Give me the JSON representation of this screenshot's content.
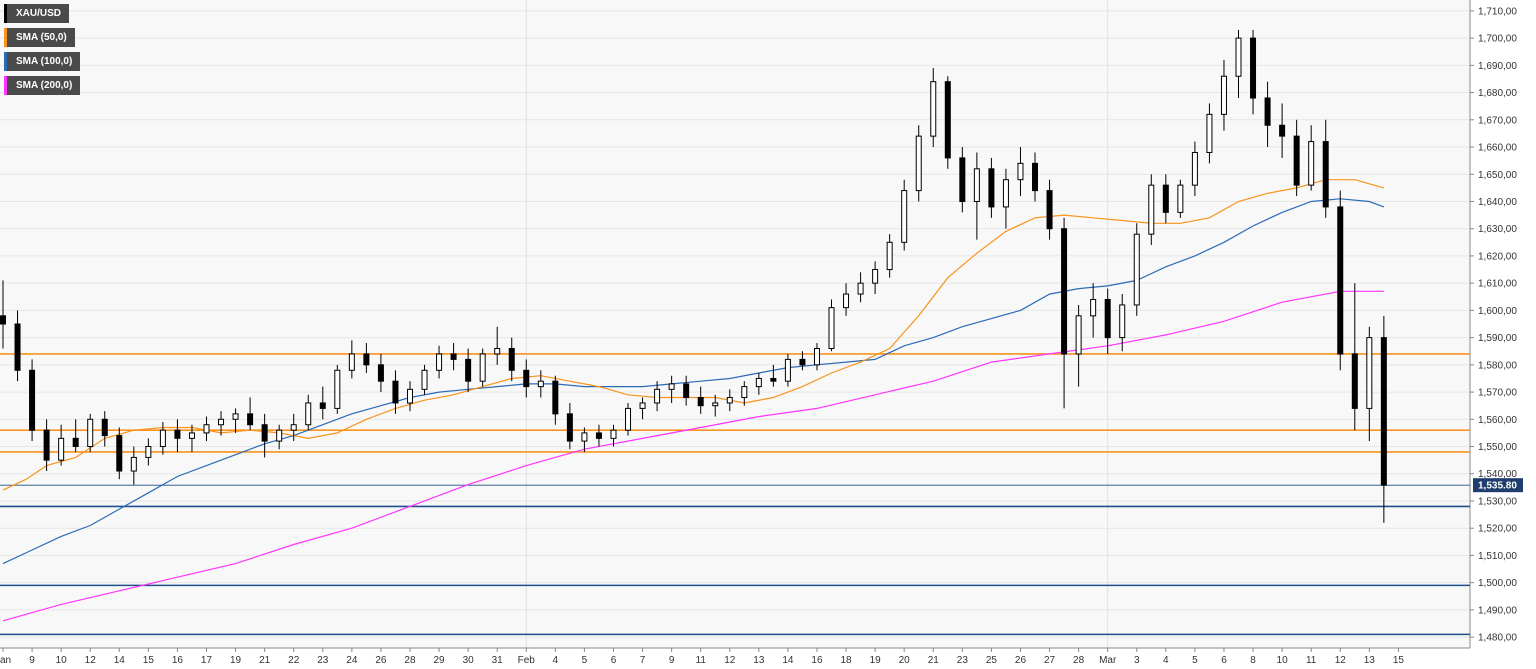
{
  "chart_data": {
    "type": "candlestick",
    "symbol": "XAU/USD",
    "legend": [
      {
        "label": "XAU/USD",
        "color": "#000000"
      },
      {
        "label": "SMA (50,0)",
        "color": "#f7941d"
      },
      {
        "label": "SMA (100,0)",
        "color": "#2a6bb6"
      },
      {
        "label": "SMA (200,0)",
        "color": "#ff33ff"
      }
    ],
    "ylim": [
      1476,
      1714
    ],
    "y_ticks": [
      1710,
      1700,
      1690,
      1680,
      1670,
      1660,
      1650,
      1640,
      1630,
      1620,
      1610,
      1600,
      1590,
      1580,
      1570,
      1560,
      1550,
      1540,
      1530,
      1520,
      1510,
      1500,
      1490,
      1480
    ],
    "y_tick_labels": [
      "1,710,00",
      "1,700,00",
      "1,690,00",
      "1,680,00",
      "1,670,00",
      "1,660,00",
      "1,650,00",
      "1,640,00",
      "1,630,00",
      "1,620,00",
      "1,610,00",
      "1,600,00",
      "1,590,00",
      "1,580,00",
      "1,570,00",
      "1,560,00",
      "1,550,00",
      "1,540,00",
      "1,530,00",
      "1,520,00",
      "1,510,00",
      "1,500,00",
      "1,490,00",
      "1,480,00"
    ],
    "x_ticks": [
      "Jan",
      "9",
      "10",
      "12",
      "14",
      "15",
      "16",
      "17",
      "19",
      "21",
      "22",
      "23",
      "24",
      "26",
      "28",
      "29",
      "30",
      "31",
      "Feb",
      "4",
      "5",
      "6",
      "7",
      "9",
      "11",
      "12",
      "13",
      "14",
      "16",
      "18",
      "19",
      "20",
      "21",
      "23",
      "25",
      "26",
      "27",
      "28",
      "Mar",
      "3",
      "4",
      "5",
      "6",
      "8",
      "10",
      "11",
      "12",
      "13",
      "15"
    ],
    "current_price": 1535.8,
    "current_price_label": "1,535.80",
    "resistance_levels": [
      1584,
      1556,
      1548
    ],
    "support_levels": [
      1528,
      1499,
      1481
    ],
    "grid": true,
    "candles": [
      {
        "t": 0,
        "o": 1598,
        "h": 1611,
        "l": 1586,
        "c": 1595
      },
      {
        "t": 0.5,
        "o": 1595,
        "h": 1600,
        "l": 1574,
        "c": 1578
      },
      {
        "t": 1,
        "o": 1578,
        "h": 1582,
        "l": 1552,
        "c": 1556
      },
      {
        "t": 1.5,
        "o": 1556,
        "h": 1560,
        "l": 1541,
        "c": 1545
      },
      {
        "t": 2,
        "o": 1545,
        "h": 1558,
        "l": 1543,
        "c": 1553
      },
      {
        "t": 2.5,
        "o": 1553,
        "h": 1560,
        "l": 1548,
        "c": 1550
      },
      {
        "t": 3,
        "o": 1550,
        "h": 1562,
        "l": 1548,
        "c": 1560
      },
      {
        "t": 3.5,
        "o": 1560,
        "h": 1563,
        "l": 1550,
        "c": 1554
      },
      {
        "t": 4,
        "o": 1554,
        "h": 1557,
        "l": 1538,
        "c": 1541
      },
      {
        "t": 4.5,
        "o": 1541,
        "h": 1550,
        "l": 1536,
        "c": 1546
      },
      {
        "t": 5,
        "o": 1546,
        "h": 1553,
        "l": 1543,
        "c": 1550
      },
      {
        "t": 5.5,
        "o": 1550,
        "h": 1559,
        "l": 1547,
        "c": 1556
      },
      {
        "t": 6,
        "o": 1556,
        "h": 1560,
        "l": 1548,
        "c": 1553
      },
      {
        "t": 6.5,
        "o": 1553,
        "h": 1558,
        "l": 1548,
        "c": 1555
      },
      {
        "t": 7,
        "o": 1555,
        "h": 1561,
        "l": 1552,
        "c": 1558
      },
      {
        "t": 7.5,
        "o": 1558,
        "h": 1563,
        "l": 1554,
        "c": 1560
      },
      {
        "t": 8,
        "o": 1560,
        "h": 1564,
        "l": 1555,
        "c": 1562
      },
      {
        "t": 8.5,
        "o": 1562,
        "h": 1568,
        "l": 1556,
        "c": 1558
      },
      {
        "t": 9,
        "o": 1558,
        "h": 1562,
        "l": 1546,
        "c": 1552
      },
      {
        "t": 9.5,
        "o": 1552,
        "h": 1558,
        "l": 1549,
        "c": 1556
      },
      {
        "t": 10,
        "o": 1556,
        "h": 1562,
        "l": 1552,
        "c": 1558
      },
      {
        "t": 10.5,
        "o": 1558,
        "h": 1569,
        "l": 1556,
        "c": 1566
      },
      {
        "t": 11,
        "o": 1566,
        "h": 1572,
        "l": 1560,
        "c": 1564
      },
      {
        "t": 11.5,
        "o": 1564,
        "h": 1580,
        "l": 1562,
        "c": 1578
      },
      {
        "t": 12,
        "o": 1578,
        "h": 1589,
        "l": 1575,
        "c": 1584
      },
      {
        "t": 12.5,
        "o": 1584,
        "h": 1588,
        "l": 1577,
        "c": 1580
      },
      {
        "t": 13,
        "o": 1580,
        "h": 1584,
        "l": 1570,
        "c": 1574
      },
      {
        "t": 13.5,
        "o": 1574,
        "h": 1578,
        "l": 1562,
        "c": 1566
      },
      {
        "t": 14,
        "o": 1566,
        "h": 1574,
        "l": 1563,
        "c": 1571
      },
      {
        "t": 14.5,
        "o": 1571,
        "h": 1580,
        "l": 1569,
        "c": 1578
      },
      {
        "t": 15,
        "o": 1578,
        "h": 1587,
        "l": 1575,
        "c": 1584
      },
      {
        "t": 15.5,
        "o": 1584,
        "h": 1588,
        "l": 1578,
        "c": 1582
      },
      {
        "t": 16,
        "o": 1582,
        "h": 1586,
        "l": 1570,
        "c": 1574
      },
      {
        "t": 16.5,
        "o": 1574,
        "h": 1586,
        "l": 1572,
        "c": 1584
      },
      {
        "t": 17,
        "o": 1584,
        "h": 1594,
        "l": 1580,
        "c": 1586
      },
      {
        "t": 17.5,
        "o": 1586,
        "h": 1590,
        "l": 1574,
        "c": 1578
      },
      {
        "t": 18,
        "o": 1578,
        "h": 1582,
        "l": 1568,
        "c": 1572
      },
      {
        "t": 18.5,
        "o": 1572,
        "h": 1578,
        "l": 1568,
        "c": 1574
      },
      {
        "t": 19,
        "o": 1574,
        "h": 1576,
        "l": 1558,
        "c": 1562
      },
      {
        "t": 19.5,
        "o": 1562,
        "h": 1566,
        "l": 1549,
        "c": 1552
      },
      {
        "t": 20,
        "o": 1552,
        "h": 1557,
        "l": 1548,
        "c": 1555
      },
      {
        "t": 20.5,
        "o": 1555,
        "h": 1558,
        "l": 1550,
        "c": 1553
      },
      {
        "t": 21,
        "o": 1553,
        "h": 1558,
        "l": 1550,
        "c": 1556
      },
      {
        "t": 21.5,
        "o": 1556,
        "h": 1566,
        "l": 1554,
        "c": 1564
      },
      {
        "t": 22,
        "o": 1564,
        "h": 1568,
        "l": 1560,
        "c": 1566
      },
      {
        "t": 22.5,
        "o": 1566,
        "h": 1574,
        "l": 1563,
        "c": 1571
      },
      {
        "t": 23,
        "o": 1571,
        "h": 1576,
        "l": 1566,
        "c": 1573
      },
      {
        "t": 23.5,
        "o": 1573,
        "h": 1576,
        "l": 1565,
        "c": 1568
      },
      {
        "t": 24,
        "o": 1568,
        "h": 1572,
        "l": 1562,
        "c": 1565
      },
      {
        "t": 24.5,
        "o": 1565,
        "h": 1569,
        "l": 1561,
        "c": 1566
      },
      {
        "t": 25,
        "o": 1566,
        "h": 1571,
        "l": 1563,
        "c": 1568
      },
      {
        "t": 25.5,
        "o": 1568,
        "h": 1574,
        "l": 1565,
        "c": 1572
      },
      {
        "t": 26,
        "o": 1572,
        "h": 1577,
        "l": 1569,
        "c": 1575
      },
      {
        "t": 26.5,
        "o": 1575,
        "h": 1580,
        "l": 1572,
        "c": 1574
      },
      {
        "t": 27,
        "o": 1574,
        "h": 1584,
        "l": 1572,
        "c": 1582
      },
      {
        "t": 27.5,
        "o": 1582,
        "h": 1585,
        "l": 1578,
        "c": 1580
      },
      {
        "t": 28,
        "o": 1580,
        "h": 1588,
        "l": 1578,
        "c": 1586
      },
      {
        "t": 28.5,
        "o": 1586,
        "h": 1604,
        "l": 1585,
        "c": 1601
      },
      {
        "t": 29,
        "o": 1601,
        "h": 1610,
        "l": 1598,
        "c": 1606
      },
      {
        "t": 29.5,
        "o": 1606,
        "h": 1614,
        "l": 1603,
        "c": 1610
      },
      {
        "t": 30,
        "o": 1610,
        "h": 1618,
        "l": 1606,
        "c": 1615
      },
      {
        "t": 30.5,
        "o": 1615,
        "h": 1628,
        "l": 1612,
        "c": 1625
      },
      {
        "t": 31,
        "o": 1625,
        "h": 1648,
        "l": 1622,
        "c": 1644
      },
      {
        "t": 31.5,
        "o": 1644,
        "h": 1668,
        "l": 1640,
        "c": 1664
      },
      {
        "t": 32,
        "o": 1664,
        "h": 1689,
        "l": 1660,
        "c": 1684
      },
      {
        "t": 32.5,
        "o": 1684,
        "h": 1686,
        "l": 1652,
        "c": 1656
      },
      {
        "t": 33,
        "o": 1656,
        "h": 1660,
        "l": 1636,
        "c": 1640
      },
      {
        "t": 33.5,
        "o": 1640,
        "h": 1658,
        "l": 1626,
        "c": 1652
      },
      {
        "t": 34,
        "o": 1652,
        "h": 1656,
        "l": 1634,
        "c": 1638
      },
      {
        "t": 34.5,
        "o": 1638,
        "h": 1652,
        "l": 1630,
        "c": 1648
      },
      {
        "t": 35,
        "o": 1648,
        "h": 1660,
        "l": 1642,
        "c": 1654
      },
      {
        "t": 35.5,
        "o": 1654,
        "h": 1658,
        "l": 1640,
        "c": 1644
      },
      {
        "t": 36,
        "o": 1644,
        "h": 1648,
        "l": 1626,
        "c": 1630
      },
      {
        "t": 36.5,
        "o": 1630,
        "h": 1634,
        "l": 1564,
        "c": 1584
      },
      {
        "t": 37,
        "o": 1584,
        "h": 1602,
        "l": 1572,
        "c": 1598
      },
      {
        "t": 37.5,
        "o": 1598,
        "h": 1610,
        "l": 1590,
        "c": 1604
      },
      {
        "t": 38,
        "o": 1604,
        "h": 1608,
        "l": 1584,
        "c": 1590
      },
      {
        "t": 38.5,
        "o": 1590,
        "h": 1606,
        "l": 1585,
        "c": 1602
      },
      {
        "t": 39,
        "o": 1602,
        "h": 1632,
        "l": 1598,
        "c": 1628
      },
      {
        "t": 39.5,
        "o": 1628,
        "h": 1650,
        "l": 1624,
        "c": 1646
      },
      {
        "t": 40,
        "o": 1646,
        "h": 1650,
        "l": 1632,
        "c": 1636
      },
      {
        "t": 40.5,
        "o": 1636,
        "h": 1648,
        "l": 1634,
        "c": 1646
      },
      {
        "t": 41,
        "o": 1646,
        "h": 1662,
        "l": 1642,
        "c": 1658
      },
      {
        "t": 41.5,
        "o": 1658,
        "h": 1676,
        "l": 1654,
        "c": 1672
      },
      {
        "t": 42,
        "o": 1672,
        "h": 1692,
        "l": 1666,
        "c": 1686
      },
      {
        "t": 42.5,
        "o": 1686,
        "h": 1703,
        "l": 1678,
        "c": 1700
      },
      {
        "t": 43,
        "o": 1700,
        "h": 1703,
        "l": 1672,
        "c": 1678
      },
      {
        "t": 43.5,
        "o": 1678,
        "h": 1684,
        "l": 1660,
        "c": 1668
      },
      {
        "t": 44,
        "o": 1668,
        "h": 1676,
        "l": 1656,
        "c": 1664
      },
      {
        "t": 44.5,
        "o": 1664,
        "h": 1670,
        "l": 1642,
        "c": 1646
      },
      {
        "t": 45,
        "o": 1646,
        "h": 1668,
        "l": 1644,
        "c": 1662
      },
      {
        "t": 45.5,
        "o": 1662,
        "h": 1670,
        "l": 1634,
        "c": 1638
      },
      {
        "t": 46,
        "o": 1638,
        "h": 1644,
        "l": 1578,
        "c": 1584
      },
      {
        "t": 46.5,
        "o": 1584,
        "h": 1610,
        "l": 1556,
        "c": 1564
      },
      {
        "t": 47,
        "o": 1564,
        "h": 1594,
        "l": 1552,
        "c": 1590
      },
      {
        "t": 47.5,
        "o": 1590,
        "h": 1598,
        "l": 1522,
        "c": 1535.8
      }
    ],
    "sma50": [
      [
        0,
        1534
      ],
      [
        0.8,
        1538
      ],
      [
        1.5,
        1543
      ],
      [
        2.5,
        1546
      ],
      [
        3.5,
        1553
      ],
      [
        4.5,
        1556
      ],
      [
        5.5,
        1557
      ],
      [
        6.5,
        1557
      ],
      [
        7.5,
        1555
      ],
      [
        8.5,
        1556
      ],
      [
        9.5,
        1555
      ],
      [
        10.5,
        1553
      ],
      [
        11.5,
        1555
      ],
      [
        12.5,
        1560
      ],
      [
        13.5,
        1564
      ],
      [
        14.5,
        1567
      ],
      [
        15.5,
        1569
      ],
      [
        16.5,
        1572
      ],
      [
        17.5,
        1575
      ],
      [
        18.5,
        1576
      ],
      [
        19.5,
        1574
      ],
      [
        20.5,
        1572
      ],
      [
        21.5,
        1569
      ],
      [
        22.5,
        1568
      ],
      [
        23.5,
        1568
      ],
      [
        24.5,
        1568
      ],
      [
        25.5,
        1566
      ],
      [
        26.5,
        1568
      ],
      [
        27.5,
        1572
      ],
      [
        28.5,
        1577
      ],
      [
        29.5,
        1581
      ],
      [
        30.5,
        1586
      ],
      [
        31.5,
        1598
      ],
      [
        32.5,
        1612
      ],
      [
        33.5,
        1621
      ],
      [
        34.5,
        1629
      ],
      [
        35.5,
        1634
      ],
      [
        36.5,
        1635
      ],
      [
        37.5,
        1634
      ],
      [
        38.5,
        1633
      ],
      [
        39.5,
        1632
      ],
      [
        40.5,
        1632
      ],
      [
        41.5,
        1634
      ],
      [
        42.5,
        1640
      ],
      [
        43.5,
        1643
      ],
      [
        44.5,
        1645
      ],
      [
        45.5,
        1648
      ],
      [
        46.5,
        1648
      ],
      [
        47.5,
        1645
      ]
    ],
    "sma100": [
      [
        0,
        1507
      ],
      [
        1,
        1512
      ],
      [
        2,
        1517
      ],
      [
        3,
        1521
      ],
      [
        4,
        1527
      ],
      [
        5,
        1533
      ],
      [
        6,
        1539
      ],
      [
        7,
        1543
      ],
      [
        8,
        1547
      ],
      [
        9,
        1551
      ],
      [
        10,
        1554
      ],
      [
        11,
        1558
      ],
      [
        12,
        1562
      ],
      [
        13,
        1565
      ],
      [
        14,
        1568
      ],
      [
        15,
        1570
      ],
      [
        16,
        1571
      ],
      [
        17,
        1572
      ],
      [
        18,
        1573
      ],
      [
        19,
        1573
      ],
      [
        20,
        1572
      ],
      [
        21,
        1572
      ],
      [
        22,
        1572
      ],
      [
        23,
        1573
      ],
      [
        24,
        1574
      ],
      [
        25,
        1575
      ],
      [
        26,
        1577
      ],
      [
        27,
        1579
      ],
      [
        28,
        1580
      ],
      [
        29,
        1581
      ],
      [
        30,
        1582
      ],
      [
        31,
        1587
      ],
      [
        32,
        1590
      ],
      [
        33,
        1594
      ],
      [
        34,
        1597
      ],
      [
        35,
        1600
      ],
      [
        36,
        1606
      ],
      [
        37,
        1608
      ],
      [
        38,
        1609
      ],
      [
        39,
        1611
      ],
      [
        40,
        1616
      ],
      [
        41,
        1620
      ],
      [
        42,
        1625
      ],
      [
        43,
        1631
      ],
      [
        44,
        1636
      ],
      [
        45,
        1640
      ],
      [
        46,
        1641
      ],
      [
        47,
        1640
      ],
      [
        47.5,
        1638
      ]
    ],
    "sma200": [
      [
        0,
        1486
      ],
      [
        2,
        1492
      ],
      [
        4,
        1497
      ],
      [
        6,
        1502
      ],
      [
        8,
        1507
      ],
      [
        10,
        1514
      ],
      [
        12,
        1520
      ],
      [
        14,
        1528
      ],
      [
        16,
        1536
      ],
      [
        18,
        1543
      ],
      [
        20,
        1549
      ],
      [
        22,
        1553
      ],
      [
        24,
        1557
      ],
      [
        26,
        1561
      ],
      [
        28,
        1564
      ],
      [
        30,
        1569
      ],
      [
        32,
        1574
      ],
      [
        34,
        1581
      ],
      [
        36,
        1584
      ],
      [
        38,
        1587
      ],
      [
        40,
        1591
      ],
      [
        42,
        1596
      ],
      [
        44,
        1603
      ],
      [
        46,
        1607
      ],
      [
        47.5,
        1607
      ]
    ]
  }
}
